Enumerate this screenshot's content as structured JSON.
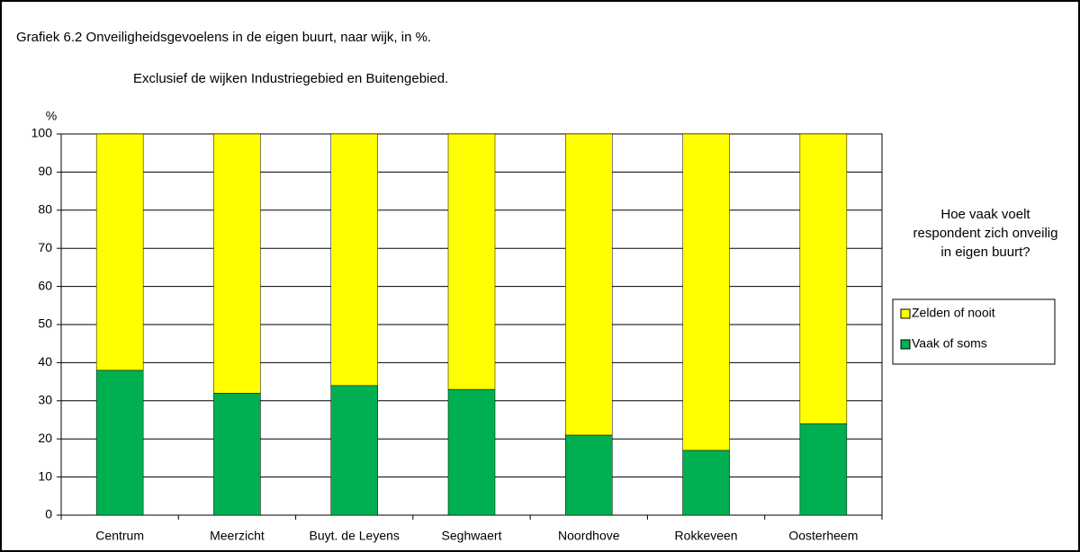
{
  "chart_data": {
    "type": "stacked_bar",
    "title": "Grafiek 6.2  Onveiligheidsgevoelens  in de eigen buurt, naar wijk, in %.",
    "subtitle": "Exclusief de wijken Industriegebied en Buitengebied.",
    "y_label": "%",
    "legend_title": "Hoe vaak voelt respondent zich onveilig in eigen buurt?",
    "categories": [
      "Centrum",
      "Meerzicht",
      "Buyt. de Leyens",
      "Seghwaert",
      "Noordhove",
      "Rokkeveen",
      "Oosterheem"
    ],
    "series": [
      {
        "name": "Vaak of soms",
        "color": "#00b050",
        "values": [
          38,
          32,
          34,
          33,
          21,
          17,
          24
        ]
      },
      {
        "name": "Zelden of nooit",
        "color": "#ffff00",
        "values": [
          62,
          68,
          66,
          67,
          79,
          83,
          76
        ]
      }
    ],
    "ylim": [
      0,
      100
    ],
    "yticks": [
      0,
      10,
      20,
      30,
      40,
      50,
      60,
      70,
      80,
      90,
      100
    ],
    "grid": true,
    "legend": "right"
  }
}
